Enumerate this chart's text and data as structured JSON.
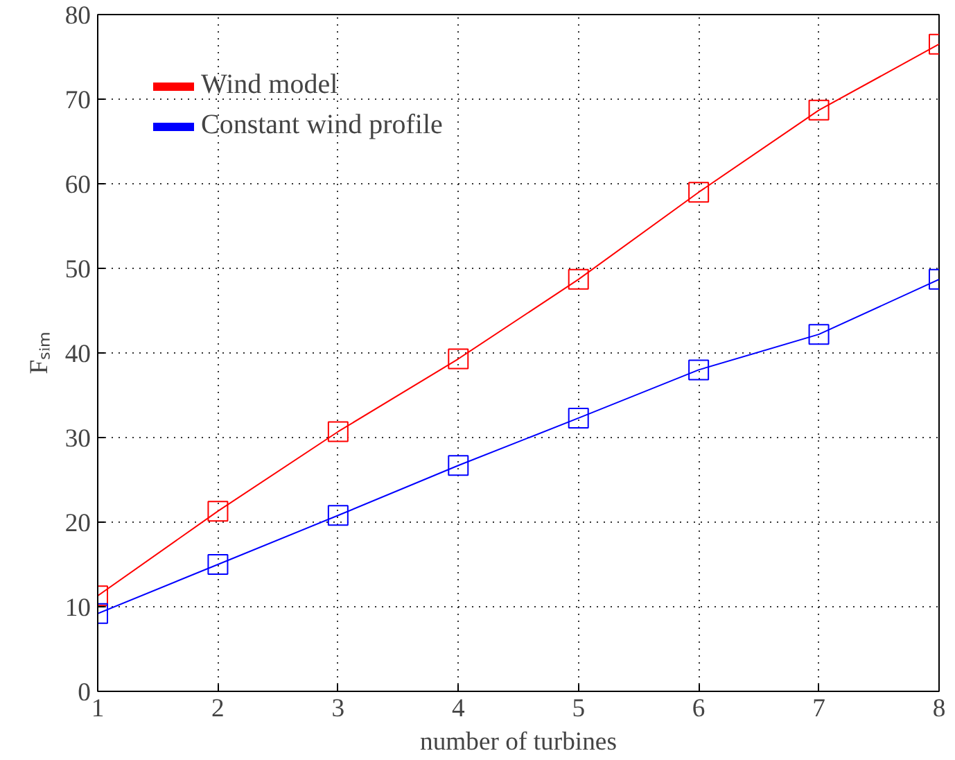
{
  "chart_data": {
    "type": "line",
    "xlabel": "number of turbines",
    "ylabel": "Fₛᵢₘ",
    "x": [
      1,
      2,
      3,
      4,
      5,
      6,
      7,
      8
    ],
    "series": [
      {
        "name": "Wind model",
        "color": "#ff0000",
        "values": [
          11.3,
          21.3,
          30.7,
          39.3,
          48.7,
          59.0,
          68.7,
          76.5
        ]
      },
      {
        "name": "Constant wind profile",
        "color": "#0000ff",
        "values": [
          9.2,
          15.0,
          20.8,
          26.7,
          32.3,
          38.0,
          42.2,
          48.7
        ]
      }
    ],
    "xlim": [
      1,
      8
    ],
    "ylim": [
      0,
      80
    ],
    "xticks": [
      1,
      2,
      3,
      4,
      5,
      6,
      7,
      8
    ],
    "yticks": [
      0,
      10,
      20,
      30,
      40,
      50,
      60,
      70,
      80
    ],
    "grid": true,
    "legend": "top left",
    "marker": "square",
    "line_style": "solid"
  }
}
